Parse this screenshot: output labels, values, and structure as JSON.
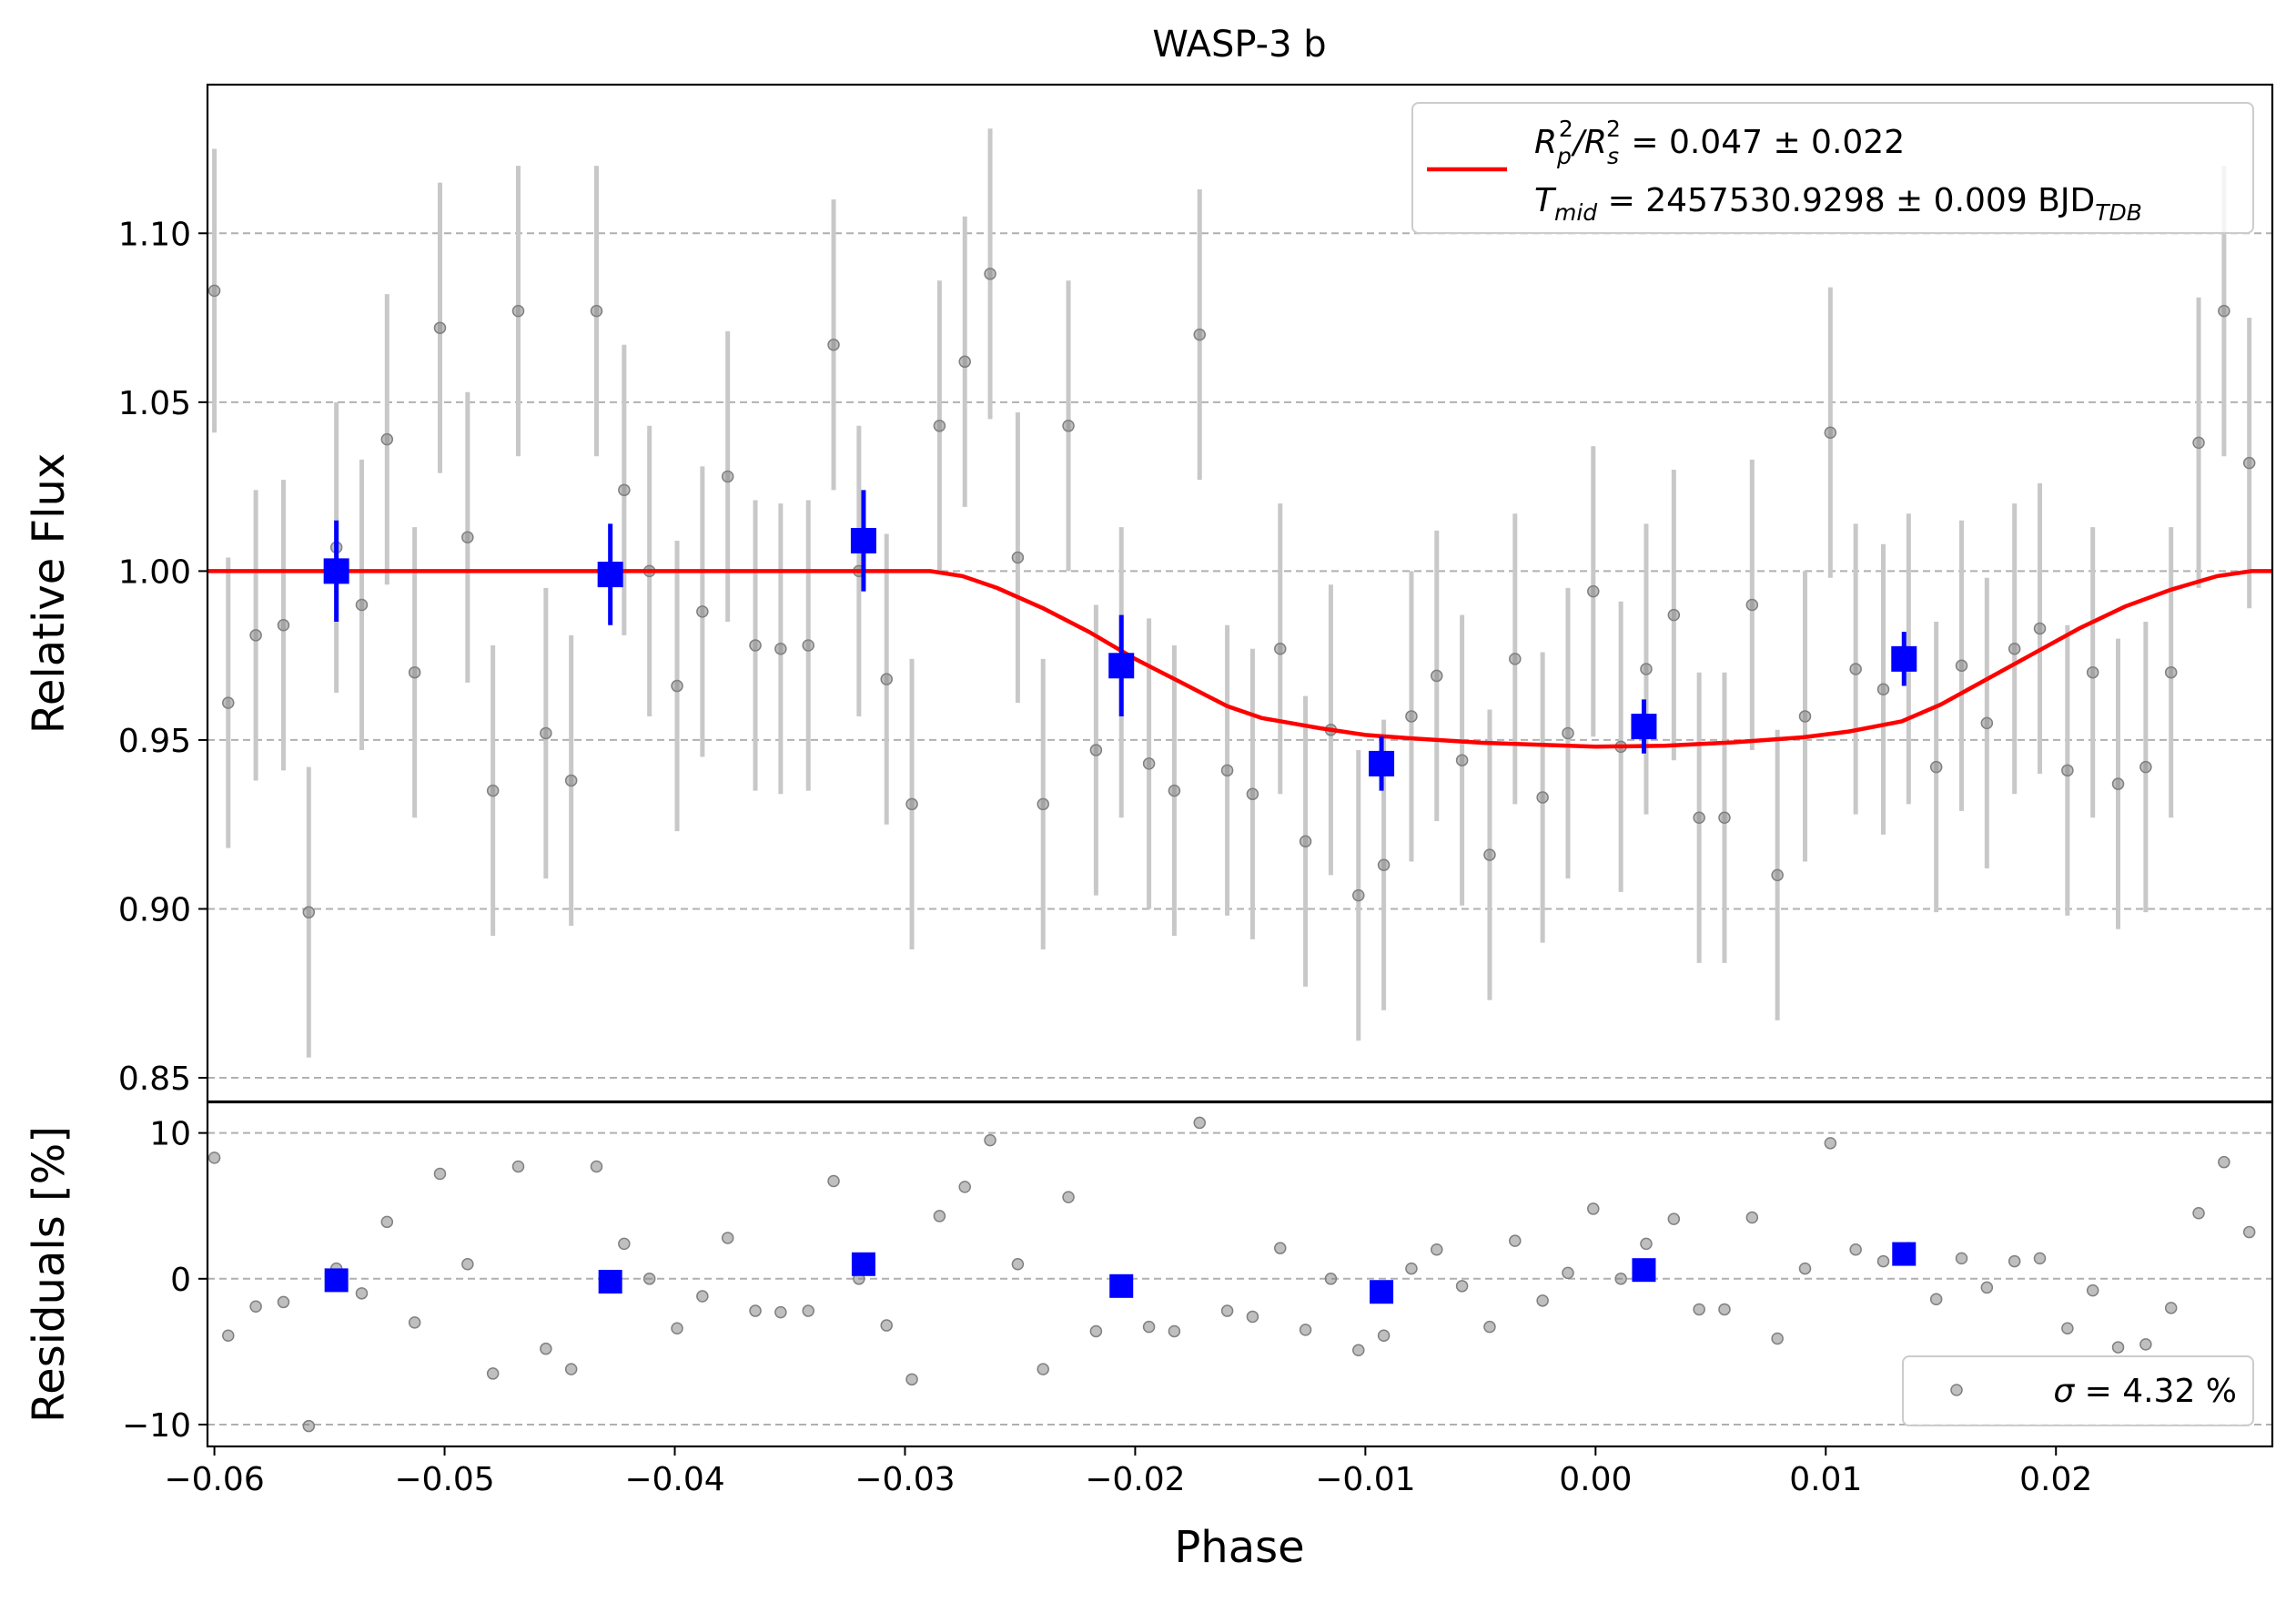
{
  "chart_data": {
    "type": "scatter",
    "title": "WASP-3 b",
    "xlabel": "Phase",
    "xlim": [
      -0.0603,
      0.0294
    ],
    "x_ticks": [
      -0.06,
      -0.05,
      -0.04,
      -0.03,
      -0.02,
      -0.01,
      0.0,
      0.01,
      0.02
    ],
    "x_tick_labels": [
      "−0.06",
      "−0.05",
      "−0.04",
      "−0.03",
      "−0.02",
      "−0.01",
      "0.00",
      "0.01",
      "0.02"
    ],
    "grid": "horizontal dashed",
    "colors": {
      "raw": "#808080",
      "raw_error": "#c8c8c8",
      "binned": "#0000ff",
      "model": "#ff0000"
    },
    "top_panel": {
      "ylabel": "Relative Flux",
      "ylim": [
        0.843,
        1.144
      ],
      "y_ticks": [
        0.85,
        0.9,
        0.95,
        1.0,
        1.05,
        1.1
      ],
      "y_tick_labels": [
        "0.85",
        "0.90",
        "0.95",
        "1.00",
        "1.05",
        "1.10"
      ],
      "legend": {
        "placement": "top-right",
        "line1": {
          "base": "R",
          "sub1": "p",
          "sup1": "2",
          "slash": "/R",
          "sub2": "s",
          "sup2": "2",
          "rest": " = 0.047 ± 0.022"
        },
        "line2": {
          "base": "T",
          "sub1": "mid",
          "rest": " = 2457530.9298 ± 0.009 BJD",
          "sub2": "TDB"
        }
      },
      "raw_points": [
        [
          -0.06,
          1.083,
          0.042
        ],
        [
          -0.0594,
          0.961,
          0.043
        ],
        [
          -0.0582,
          0.981,
          0.043
        ],
        [
          -0.057,
          0.984,
          0.043
        ],
        [
          -0.0559,
          0.899,
          0.043
        ],
        [
          -0.0547,
          1.007,
          0.043
        ],
        [
          -0.0536,
          0.99,
          0.043
        ],
        [
          -0.0525,
          1.039,
          0.043
        ],
        [
          -0.0513,
          0.97,
          0.043
        ],
        [
          -0.0502,
          1.072,
          0.043
        ],
        [
          -0.049,
          1.01,
          0.043
        ],
        [
          -0.0479,
          0.935,
          0.043
        ],
        [
          -0.0468,
          1.077,
          0.043
        ],
        [
          -0.0456,
          0.952,
          0.043
        ],
        [
          -0.0445,
          0.938,
          0.043
        ],
        [
          -0.0434,
          1.077,
          0.043
        ],
        [
          -0.0422,
          1.024,
          0.043
        ],
        [
          -0.0411,
          1.0,
          0.043
        ],
        [
          -0.0399,
          0.966,
          0.043
        ],
        [
          -0.0388,
          0.988,
          0.043
        ],
        [
          -0.0377,
          1.028,
          0.043
        ],
        [
          -0.0365,
          0.978,
          0.043
        ],
        [
          -0.0354,
          0.977,
          0.043
        ],
        [
          -0.0342,
          0.978,
          0.043
        ],
        [
          -0.0331,
          1.067,
          0.043
        ],
        [
          -0.032,
          1.0,
          0.043
        ],
        [
          -0.0308,
          0.968,
          0.043
        ],
        [
          -0.0297,
          0.931,
          0.043
        ],
        [
          -0.0285,
          1.043,
          0.043
        ],
        [
          -0.0274,
          1.062,
          0.043
        ],
        [
          -0.0263,
          1.088,
          0.043
        ],
        [
          -0.0251,
          1.004,
          0.043
        ],
        [
          -0.024,
          0.931,
          0.043
        ],
        [
          -0.0229,
          1.043,
          0.043
        ],
        [
          -0.0217,
          0.947,
          0.043
        ],
        [
          -0.0206,
          0.97,
          0.043
        ],
        [
          -0.0194,
          0.943,
          0.043
        ],
        [
          -0.0183,
          0.935,
          0.043
        ],
        [
          -0.0172,
          1.07,
          0.043
        ],
        [
          -0.016,
          0.941,
          0.043
        ],
        [
          -0.0149,
          0.934,
          0.043
        ],
        [
          -0.0137,
          0.977,
          0.043
        ],
        [
          -0.0126,
          0.92,
          0.043
        ],
        [
          -0.0115,
          0.953,
          0.043
        ],
        [
          -0.0103,
          0.904,
          0.043
        ],
        [
          -0.0092,
          0.913,
          0.043
        ],
        [
          -0.008,
          0.957,
          0.043
        ],
        [
          -0.0069,
          0.969,
          0.043
        ],
        [
          -0.0058,
          0.944,
          0.043
        ],
        [
          -0.0046,
          0.916,
          0.043
        ],
        [
          -0.0035,
          0.974,
          0.043
        ],
        [
          -0.0023,
          0.933,
          0.043
        ],
        [
          -0.0012,
          0.952,
          0.043
        ],
        [
          -0.0001,
          0.994,
          0.043
        ],
        [
          0.0011,
          0.948,
          0.043
        ],
        [
          0.0022,
          0.971,
          0.043
        ],
        [
          0.0034,
          0.987,
          0.043
        ],
        [
          0.0045,
          0.927,
          0.043
        ],
        [
          0.0056,
          0.927,
          0.043
        ],
        [
          0.0068,
          0.99,
          0.043
        ],
        [
          0.0079,
          0.91,
          0.043
        ],
        [
          0.0091,
          0.957,
          0.043
        ],
        [
          0.0102,
          1.041,
          0.043
        ],
        [
          0.0113,
          0.971,
          0.043
        ],
        [
          0.0125,
          0.965,
          0.043
        ],
        [
          0.0136,
          0.974,
          0.043
        ],
        [
          0.0148,
          0.942,
          0.043
        ],
        [
          0.0159,
          0.972,
          0.043
        ],
        [
          0.017,
          0.955,
          0.043
        ],
        [
          0.0182,
          0.977,
          0.043
        ],
        [
          0.0193,
          0.983,
          0.043
        ],
        [
          0.0205,
          0.941,
          0.043
        ],
        [
          0.0216,
          0.97,
          0.043
        ],
        [
          0.0227,
          0.937,
          0.043
        ],
        [
          0.0239,
          0.942,
          0.043
        ],
        [
          0.025,
          0.97,
          0.043
        ],
        [
          0.0262,
          1.038,
          0.043
        ],
        [
          0.0273,
          1.077,
          0.043
        ],
        [
          0.0284,
          1.032,
          0.043
        ]
      ],
      "binned_points": [
        [
          -0.0547,
          1.0,
          0.015
        ],
        [
          -0.0428,
          0.999,
          0.015
        ],
        [
          -0.0318,
          1.009,
          0.015
        ],
        [
          -0.0206,
          0.972,
          0.015
        ],
        [
          -0.0093,
          0.943,
          0.008
        ],
        [
          0.0021,
          0.954,
          0.008
        ],
        [
          0.0134,
          0.974,
          0.008
        ]
      ],
      "model_curve": [
        [
          -0.0603,
          1.0
        ],
        [
          -0.0289,
          1.0
        ],
        [
          -0.0275,
          0.9985
        ],
        [
          -0.026,
          0.995
        ],
        [
          -0.024,
          0.989
        ],
        [
          -0.022,
          0.982
        ],
        [
          -0.02,
          0.974
        ],
        [
          -0.018,
          0.967
        ],
        [
          -0.016,
          0.96
        ],
        [
          -0.0145,
          0.9565
        ],
        [
          -0.012,
          0.9535
        ],
        [
          -0.01,
          0.9515
        ],
        [
          -0.008,
          0.9505
        ],
        [
          -0.005,
          0.9492
        ],
        [
          0.0,
          0.948
        ],
        [
          0.003,
          0.9483
        ],
        [
          0.006,
          0.9493
        ],
        [
          0.009,
          0.9508
        ],
        [
          0.011,
          0.9525
        ],
        [
          0.0133,
          0.9555
        ],
        [
          0.015,
          0.9605
        ],
        [
          0.017,
          0.968
        ],
        [
          0.019,
          0.9755
        ],
        [
          0.021,
          0.983
        ],
        [
          0.023,
          0.9895
        ],
        [
          0.025,
          0.9945
        ],
        [
          0.027,
          0.9985
        ],
        [
          0.0285,
          1.0
        ],
        [
          0.0294,
          1.0
        ]
      ]
    },
    "bottom_panel": {
      "ylabel": "Residuals [%]",
      "ylim": [
        -11.5,
        12.1
      ],
      "y_ticks": [
        -10,
        0,
        10
      ],
      "y_tick_labels": [
        "−10",
        "0",
        "10"
      ],
      "legend": {
        "placement": "bottom-right",
        "label_symbol": "σ",
        "label_rest": " = 4.32 %"
      },
      "raw_points": [
        [
          -0.06,
          8.3
        ],
        [
          -0.0594,
          -3.9
        ],
        [
          -0.0582,
          -1.9
        ],
        [
          -0.057,
          -1.6
        ],
        [
          -0.0559,
          -10.1
        ],
        [
          -0.0547,
          0.7
        ],
        [
          -0.0536,
          -1.0
        ],
        [
          -0.0525,
          3.9
        ],
        [
          -0.0513,
          -3.0
        ],
        [
          -0.0502,
          7.2
        ],
        [
          -0.049,
          1.0
        ],
        [
          -0.0479,
          -6.5
        ],
        [
          -0.0468,
          7.7
        ],
        [
          -0.0456,
          -4.8
        ],
        [
          -0.0445,
          -6.2
        ],
        [
          -0.0434,
          7.7
        ],
        [
          -0.0422,
          2.4
        ],
        [
          -0.0411,
          0.0
        ],
        [
          -0.0399,
          -3.4
        ],
        [
          -0.0388,
          -1.2
        ],
        [
          -0.0377,
          2.8
        ],
        [
          -0.0365,
          -2.2
        ],
        [
          -0.0354,
          -2.3
        ],
        [
          -0.0342,
          -2.2
        ],
        [
          -0.0331,
          6.7
        ],
        [
          -0.032,
          0.0
        ],
        [
          -0.0308,
          -3.2
        ],
        [
          -0.0297,
          -6.9
        ],
        [
          -0.0285,
          4.3
        ],
        [
          -0.0274,
          6.3
        ],
        [
          -0.0263,
          9.5
        ],
        [
          -0.0251,
          1.0
        ],
        [
          -0.024,
          -6.2
        ],
        [
          -0.0229,
          5.6
        ],
        [
          -0.0217,
          -3.6
        ],
        [
          -0.0206,
          -0.5
        ],
        [
          -0.0194,
          -3.3
        ],
        [
          -0.0183,
          -3.6
        ],
        [
          -0.0172,
          10.7
        ],
        [
          -0.016,
          -2.2
        ],
        [
          -0.0149,
          -2.6
        ],
        [
          -0.0137,
          2.1
        ],
        [
          -0.0126,
          -3.5
        ],
        [
          -0.0115,
          0.0
        ],
        [
          -0.0103,
          -4.9
        ],
        [
          -0.0092,
          -3.9
        ],
        [
          -0.008,
          0.7
        ],
        [
          -0.0069,
          2.0
        ],
        [
          -0.0058,
          -0.5
        ],
        [
          -0.0046,
          -3.3
        ],
        [
          -0.0035,
          2.6
        ],
        [
          -0.0023,
          -1.5
        ],
        [
          -0.0012,
          0.4
        ],
        [
          -0.0001,
          4.8
        ],
        [
          0.0011,
          0.0
        ],
        [
          0.0022,
          2.4
        ],
        [
          0.0034,
          4.1
        ],
        [
          0.0045,
          -2.1
        ],
        [
          0.0056,
          -2.1
        ],
        [
          0.0068,
          4.2
        ],
        [
          0.0079,
          -4.1
        ],
        [
          0.0091,
          0.7
        ],
        [
          0.0102,
          9.3
        ],
        [
          0.0113,
          2.0
        ],
        [
          0.0125,
          1.2
        ],
        [
          0.0136,
          2.1
        ],
        [
          0.0148,
          -1.4
        ],
        [
          0.0159,
          1.4
        ],
        [
          0.017,
          -0.6
        ],
        [
          0.0182,
          1.2
        ],
        [
          0.0193,
          1.4
        ],
        [
          0.0205,
          -3.4
        ],
        [
          0.0216,
          -0.8
        ],
        [
          0.0227,
          -4.7
        ],
        [
          0.0239,
          -4.5
        ],
        [
          0.025,
          -2.0
        ],
        [
          0.0262,
          4.5
        ],
        [
          0.0273,
          8.0
        ],
        [
          0.0284,
          3.2
        ]
      ],
      "binned_points": [
        [
          -0.0547,
          -0.1
        ],
        [
          -0.0428,
          -0.2
        ],
        [
          -0.0318,
          1.0
        ],
        [
          -0.0206,
          -0.5
        ],
        [
          -0.0093,
          -0.9
        ],
        [
          0.0021,
          0.6
        ],
        [
          0.0134,
          1.7
        ]
      ]
    }
  }
}
